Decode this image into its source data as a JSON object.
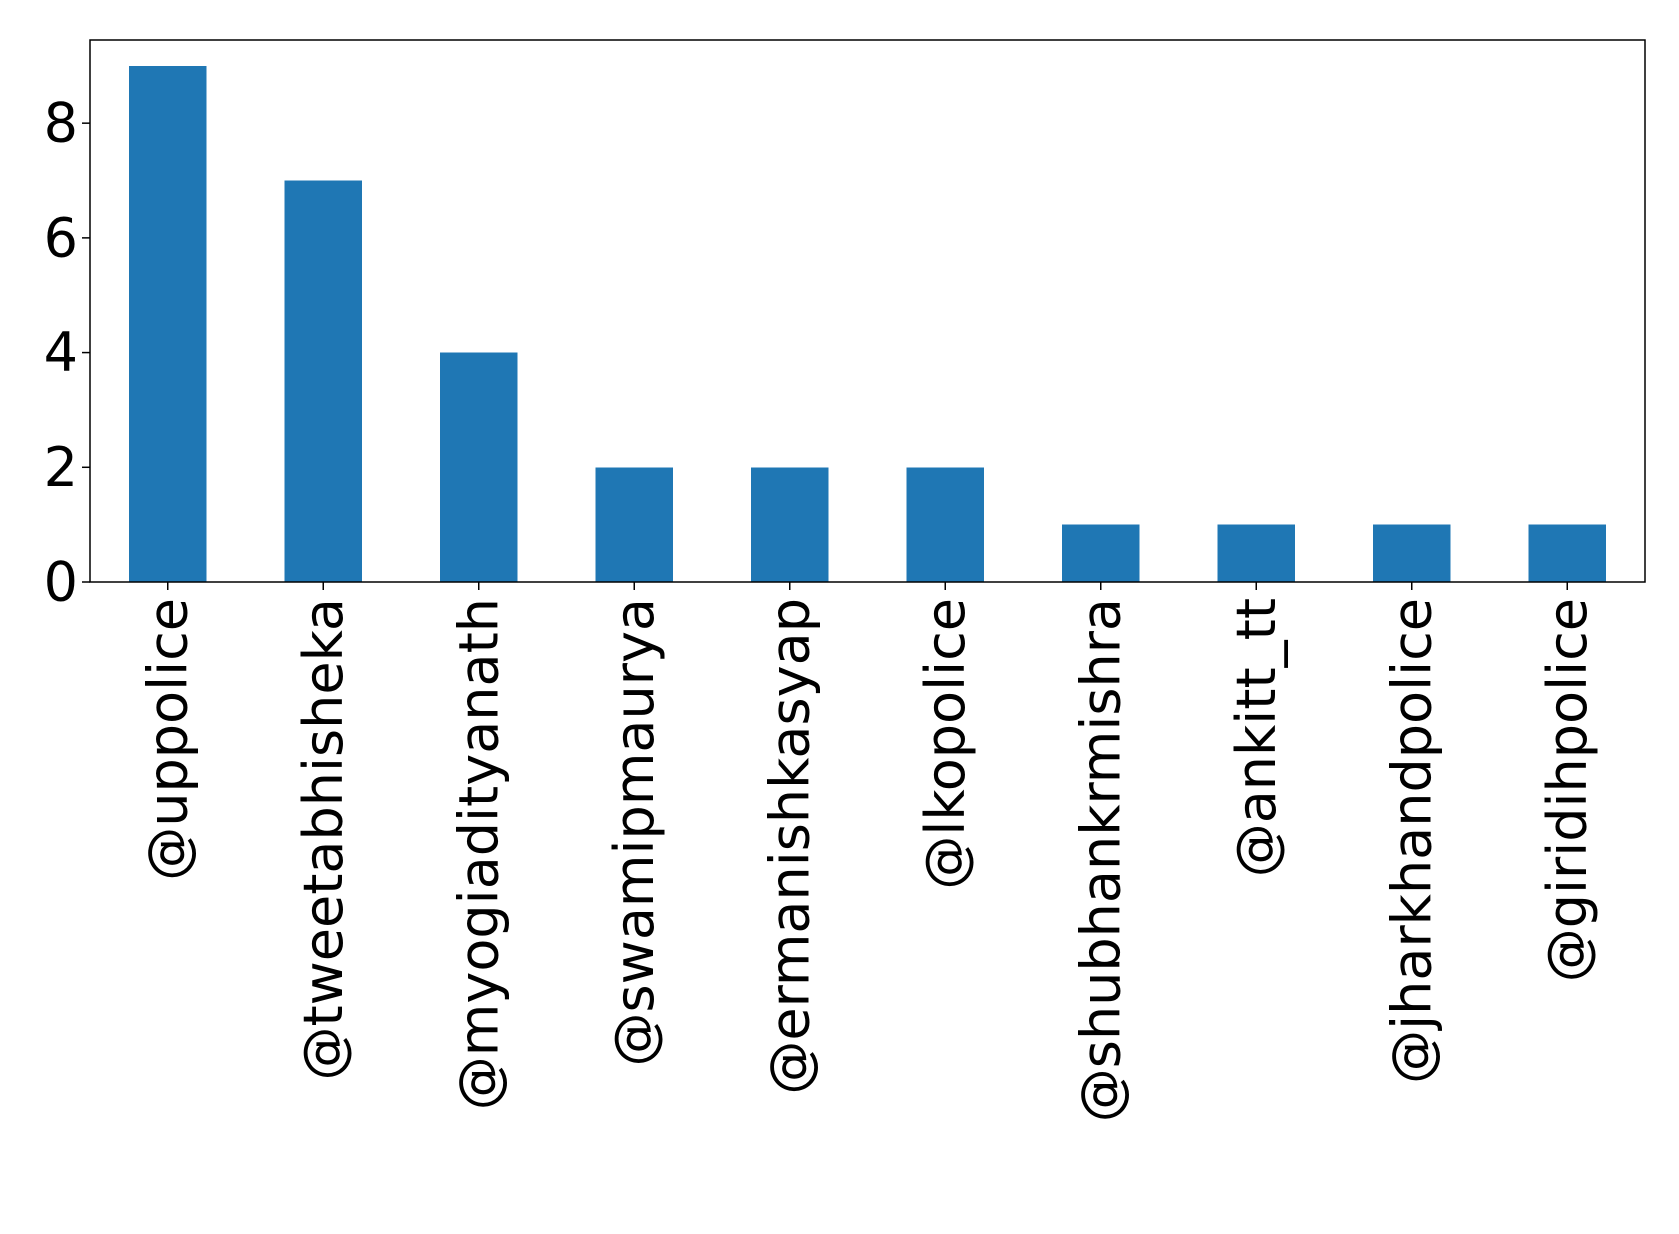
{
  "chart_data": {
    "type": "bar",
    "categories": [
      "@uppolice",
      "@tweetabhisheka",
      "@myogiadityanath",
      "@swamipmaurya",
      "@ermanishkasyap",
      "@lkopolice",
      "@shubhankrmishra",
      "@ankitt_tt",
      "@jharkhandpolice",
      "@giridihpolice"
    ],
    "values": [
      9,
      7,
      4,
      2,
      2,
      2,
      1,
      1,
      1,
      1
    ],
    "title": "",
    "xlabel": "",
    "ylabel": "",
    "ylim": [
      0,
      9.45
    ],
    "yticks": [
      0,
      2,
      4,
      6,
      8
    ],
    "grid": false,
    "legend": "none",
    "bar_color": "#1f77b4",
    "axis_color": "#000000"
  }
}
